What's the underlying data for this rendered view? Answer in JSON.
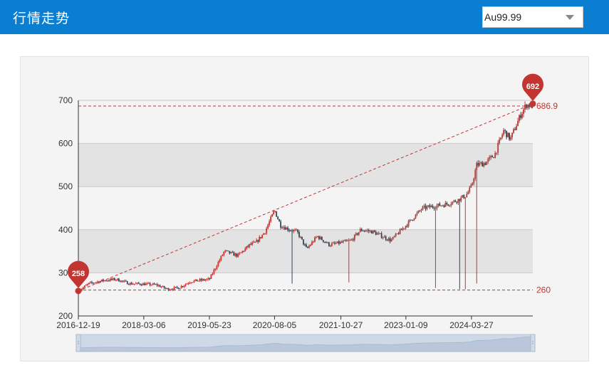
{
  "header": {
    "title": "行情走势",
    "select": {
      "value": "Au99.99"
    }
  },
  "colors": {
    "header_bg": "#0a7fd1",
    "up": "#c23531",
    "down": "#314656",
    "band_dark": "#e3e3e3",
    "band_light": "#f4f4f4"
  },
  "icons": {
    "select_arrow": "chevron-down-icon",
    "zoom_handle": "drag-handle-icon"
  },
  "chart_data": {
    "type": "candlestick",
    "title": "",
    "xlabel": "",
    "ylabel": "",
    "ylim": [
      200,
      700
    ],
    "yticks": [
      200,
      300,
      400,
      500,
      600,
      700
    ],
    "xlim": [
      "2016-12-19",
      "2025-05-15"
    ],
    "xticks": [
      "2016-12-19",
      "2018-03-06",
      "2019-05-23",
      "2020-08-05",
      "2021-10-27",
      "2023-01-09",
      "2024-03-27"
    ],
    "grid": "alternating horizontal bands",
    "series": [
      {
        "trend_points": [
          [
            "2016-12-19",
            258
          ],
          [
            "2017-03-01",
            275
          ],
          [
            "2017-06-01",
            282
          ],
          [
            "2017-09-01",
            285
          ],
          [
            "2017-12-01",
            275
          ],
          [
            "2018-03-06",
            274
          ],
          [
            "2018-06-01",
            272
          ],
          [
            "2018-08-15",
            262
          ],
          [
            "2018-11-01",
            266
          ],
          [
            "2019-01-15",
            280
          ],
          [
            "2019-05-23",
            285
          ],
          [
            "2019-07-15",
            320
          ],
          [
            "2019-09-01",
            350
          ],
          [
            "2019-12-01",
            340
          ],
          [
            "2020-02-20",
            365
          ],
          [
            "2020-04-01",
            370
          ],
          [
            "2020-06-01",
            395
          ],
          [
            "2020-08-05",
            445
          ],
          [
            "2020-09-15",
            410
          ],
          [
            "2020-11-15",
            400
          ],
          [
            "2021-01-05",
            395
          ],
          [
            "2021-03-10",
            355
          ],
          [
            "2021-05-20",
            385
          ],
          [
            "2021-08-10",
            365
          ],
          [
            "2021-10-27",
            370
          ],
          [
            "2022-01-05",
            375
          ],
          [
            "2022-03-10",
            400
          ],
          [
            "2022-06-01",
            395
          ],
          [
            "2022-09-30",
            375
          ],
          [
            "2023-01-09",
            410
          ],
          [
            "2023-05-01",
            450
          ],
          [
            "2023-08-01",
            455
          ],
          [
            "2023-10-20",
            460
          ],
          [
            "2024-01-01",
            470
          ],
          [
            "2024-02-20",
            480
          ],
          [
            "2024-03-27",
            500
          ],
          [
            "2024-05-01",
            550
          ],
          [
            "2024-06-30",
            555
          ],
          [
            "2024-09-01",
            575
          ],
          [
            "2024-10-31",
            630
          ],
          [
            "2024-12-15",
            610
          ],
          [
            "2025-02-20",
            665
          ],
          [
            "2025-04-01",
            690
          ],
          [
            "2025-05-15",
            686.9
          ]
        ],
        "range_low": 256,
        "range_high": 692
      }
    ],
    "mark_points": [
      {
        "label": "258",
        "date": "2016-12-19",
        "value": 258
      },
      {
        "label": "692",
        "date": "2025-05-15",
        "value": 692
      }
    ],
    "mark_lines": [
      {
        "label": "686.9",
        "value": 686.9
      },
      {
        "label": "260",
        "value": 260
      }
    ],
    "dataZoom": {
      "start": 0,
      "end": 100
    }
  }
}
